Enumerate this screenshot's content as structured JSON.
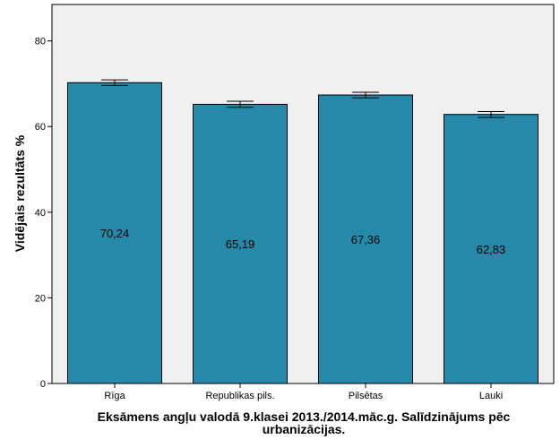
{
  "chart_data": {
    "type": "bar",
    "categories": [
      "Rīga",
      "Republikas pils.",
      "Pilsētas",
      "Lauki"
    ],
    "values": [
      70.24,
      65.19,
      67.36,
      62.83
    ],
    "data_labels": [
      "70,24",
      "65,19",
      "67,36",
      "62,83"
    ],
    "error_bars": [
      [
        69.6,
        70.9
      ],
      [
        64.5,
        65.9
      ],
      [
        66.7,
        68.0
      ],
      [
        62.1,
        63.5
      ]
    ],
    "yticks": [
      0,
      20,
      40,
      60,
      80
    ],
    "ylim": [
      0,
      88.5
    ],
    "ylabel": "Vidējais rezultāts %",
    "xlabel_line1": "Eksāmens angļu valodā 9.klasei 2013./2014.māc.g. Salīdzinājums pēc",
    "xlabel_line2": "urbanizācijas.",
    "colors": {
      "bar": "#2689A9",
      "plot_bg": "#F0F0F0",
      "axis": "#000000"
    }
  }
}
